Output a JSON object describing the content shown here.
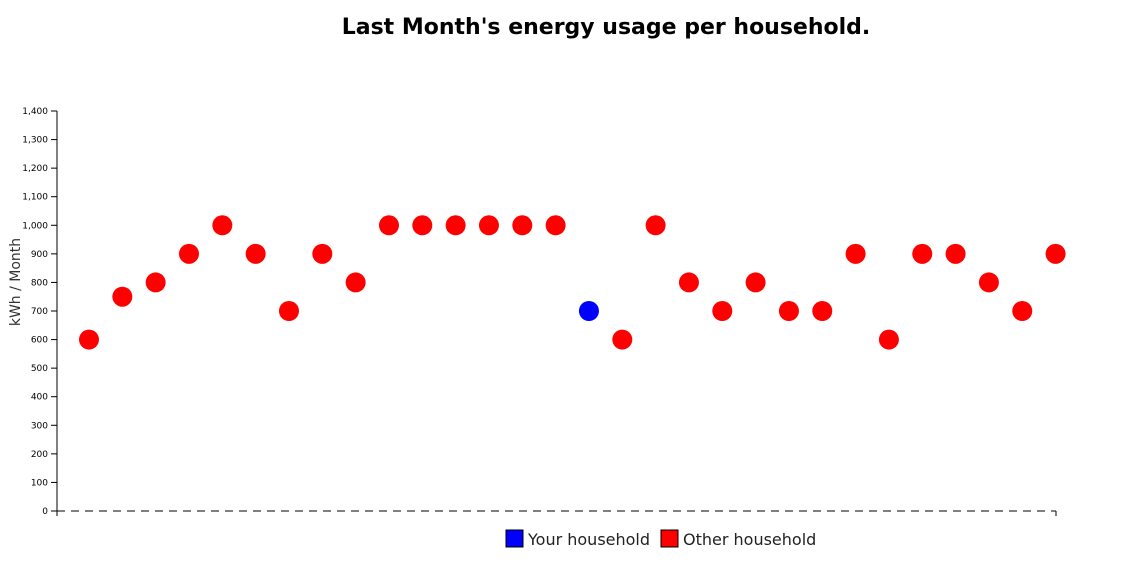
{
  "chart_data": {
    "type": "scatter",
    "title": "Last Month's energy usage per household.",
    "xlabel": "",
    "ylabel": "kWh / Month",
    "ylim": [
      0,
      1400
    ],
    "yticks": [
      0,
      100,
      200,
      300,
      400,
      500,
      600,
      700,
      800,
      900,
      1000,
      1100,
      1200,
      1300,
      1400
    ],
    "ytick_labels": [
      "0",
      "100",
      "200",
      "300",
      "400",
      "500",
      "600",
      "700",
      "800",
      "900",
      "1,000",
      "1,100",
      "1,200",
      "1,300",
      "1,400"
    ],
    "grid": false,
    "legend_position": "bottom-center",
    "series": [
      {
        "name": "Your household",
        "color": "#0000ff",
        "x": [
          16
        ],
        "values": [
          700
        ]
      },
      {
        "name": "Other household",
        "color": "#ff0000",
        "x": [
          1,
          2,
          3,
          4,
          5,
          6,
          7,
          8,
          9,
          10,
          11,
          12,
          13,
          14,
          15,
          17,
          18,
          19,
          20,
          21,
          22,
          23,
          24,
          25,
          26,
          27,
          28,
          29,
          30
        ],
        "values": [
          600,
          750,
          800,
          900,
          1000,
          900,
          700,
          900,
          800,
          1000,
          1000,
          1000,
          1000,
          1000,
          1000,
          600,
          1000,
          800,
          700,
          800,
          700,
          700,
          900,
          600,
          900,
          900,
          800,
          700,
          900
        ]
      }
    ]
  }
}
